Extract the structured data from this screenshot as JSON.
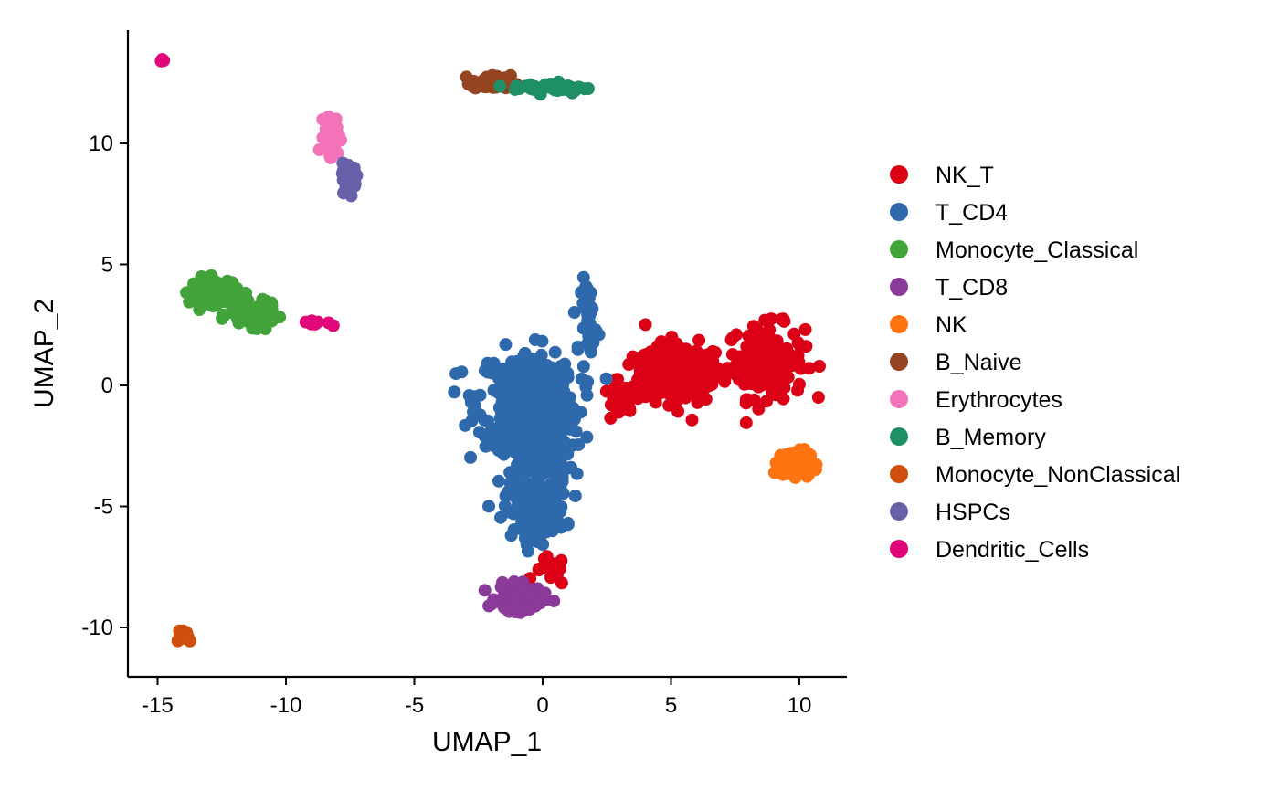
{
  "chart_data": {
    "type": "scatter",
    "title": "",
    "xlabel": "UMAP_1",
    "ylabel": "UMAP_2",
    "xlim": [
      -16,
      12
    ],
    "ylim": [
      -12,
      14.5
    ],
    "x_ticks": [
      -15,
      -10,
      -5,
      0,
      5,
      10
    ],
    "x_tick_labels": [
      "-15",
      "-10",
      "-5",
      "0",
      "5",
      "10"
    ],
    "y_ticks": [
      -10,
      -5,
      0,
      5,
      10
    ],
    "y_tick_labels": [
      "-10",
      "-5",
      "0",
      "5",
      "10"
    ],
    "grid": false,
    "legend_position": "right",
    "series": [
      {
        "name": "NK_T",
        "color": "#DC0017",
        "clusters": [
          {
            "cx": 5.5,
            "cy": 0.5,
            "sx": 1.0,
            "sy": 0.8,
            "n": 140
          },
          {
            "cx": 8.7,
            "cy": 1.0,
            "sx": 1.0,
            "sy": 1.0,
            "n": 170
          },
          {
            "cx": 4.3,
            "cy": 0.3,
            "sx": 0.9,
            "sy": 0.9,
            "n": 70
          },
          {
            "cx": 3.0,
            "cy": -0.8,
            "sx": 0.5,
            "sy": 0.5,
            "n": 25
          },
          {
            "cx": 0.3,
            "cy": -7.7,
            "sx": 0.4,
            "sy": 0.4,
            "n": 15
          }
        ]
      },
      {
        "name": "T_CD4",
        "color": "#2E6AAB",
        "clusters": [
          {
            "cx": -0.6,
            "cy": -0.5,
            "sx": 1.3,
            "sy": 1.3,
            "n": 330
          },
          {
            "cx": -0.2,
            "cy": -2.8,
            "sx": 0.9,
            "sy": 1.2,
            "n": 170
          },
          {
            "cx": -0.3,
            "cy": -5.2,
            "sx": 0.8,
            "sy": 0.7,
            "n": 130
          },
          {
            "cx": 1.8,
            "cy": 2.9,
            "sx": 0.2,
            "sy": 1.0,
            "n": 40
          }
        ]
      },
      {
        "name": "Monocyte_Classical",
        "color": "#42A33A",
        "clusters": [
          {
            "cx": -12.8,
            "cy": 3.9,
            "sx": 0.6,
            "sy": 0.35,
            "n": 120
          },
          {
            "cx": -11.3,
            "cy": 2.9,
            "sx": 0.6,
            "sy": 0.3,
            "n": 100
          }
        ]
      },
      {
        "name": "T_CD8",
        "color": "#8A3A99",
        "clusters": [
          {
            "cx": -0.9,
            "cy": -8.8,
            "sx": 0.6,
            "sy": 0.35,
            "n": 120
          }
        ]
      },
      {
        "name": "NK",
        "color": "#FE7411",
        "clusters": [
          {
            "cx": 9.8,
            "cy": -3.2,
            "sx": 0.4,
            "sy": 0.35,
            "n": 100
          }
        ]
      },
      {
        "name": "B_Naive",
        "color": "#944421",
        "clusters": [
          {
            "cx": -2.0,
            "cy": 12.5,
            "sx": 0.5,
            "sy": 0.2,
            "n": 80
          }
        ]
      },
      {
        "name": "Erythrocytes",
        "color": "#F373B8",
        "clusters": [
          {
            "cx": -8.2,
            "cy": 10.3,
            "sx": 0.2,
            "sy": 0.5,
            "n": 60
          }
        ]
      },
      {
        "name": "B_Memory",
        "color": "#1E8F65",
        "clusters": [
          {
            "cx": 0.3,
            "cy": 12.3,
            "sx": 1.0,
            "sy": 0.15,
            "n": 50
          }
        ]
      },
      {
        "name": "Monocyte_NonClassical",
        "color": "#CF4F0D",
        "clusters": [
          {
            "cx": -14.0,
            "cy": -10.3,
            "sx": 0.25,
            "sy": 0.2,
            "n": 18
          }
        ]
      },
      {
        "name": "HSPCs",
        "color": "#6661A9",
        "clusters": [
          {
            "cx": -7.5,
            "cy": 8.6,
            "sx": 0.2,
            "sy": 0.4,
            "n": 40
          }
        ]
      },
      {
        "name": "Dendritic_Cells",
        "color": "#E0077A",
        "clusters": [
          {
            "cx": -8.9,
            "cy": 2.6,
            "sx": 0.35,
            "sy": 0.08,
            "n": 12
          },
          {
            "cx": -14.8,
            "cy": 13.4,
            "sx": 0.05,
            "sy": 0.05,
            "n": 4
          }
        ]
      }
    ]
  }
}
